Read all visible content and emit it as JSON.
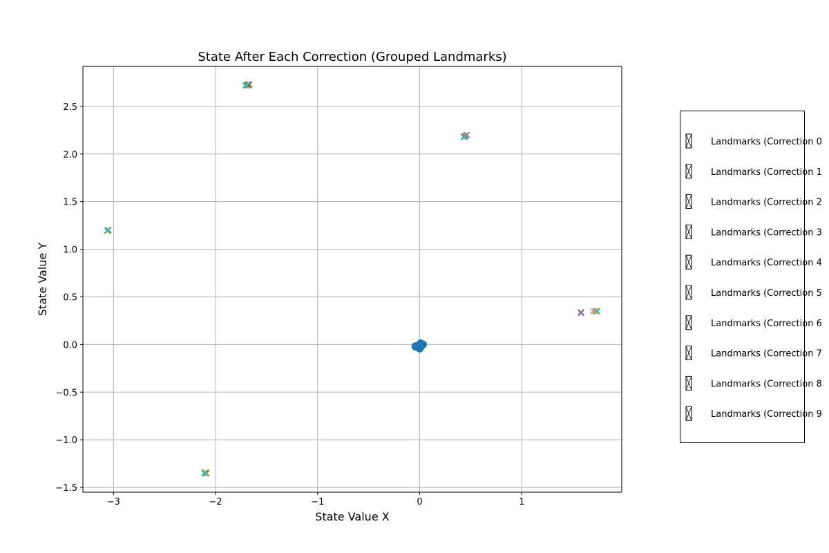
{
  "chart_data": {
    "type": "scatter",
    "title": "State After Each Correction (Grouped Landmarks)",
    "xlabel": "State Value X",
    "ylabel": "State Value Y",
    "xlim": [
      -3.3,
      1.98
    ],
    "ylim": [
      -1.55,
      2.92
    ],
    "xticks": [
      -3,
      -2,
      -1,
      0,
      1
    ],
    "xtick_labels": [
      "−3",
      "−2",
      "−1",
      "0",
      "1"
    ],
    "yticks": [
      -1.5,
      -1.0,
      -0.5,
      0.0,
      0.5,
      1.0,
      1.5,
      2.0,
      2.5
    ],
    "ytick_labels": [
      "−1.5",
      "−1.0",
      "−0.5",
      "0.0",
      "0.5",
      "1.0",
      "1.5",
      "2.0",
      "2.5"
    ],
    "grid": true,
    "legend_position": "right, outside plot (clipped)",
    "robot_state": {
      "color": "#1f77b4",
      "points": [
        [
          -0.04,
          -0.02
        ],
        [
          -0.02,
          -0.02
        ],
        [
          0.0,
          -0.03
        ],
        [
          0.01,
          -0.02
        ],
        [
          0.02,
          0.0
        ],
        [
          0.01,
          0.01
        ],
        [
          0.03,
          0.0
        ],
        [
          0.0,
          -0.04
        ]
      ]
    },
    "series": [
      {
        "label": "Landmarks (Correction 0",
        "color": "#1f77b4",
        "points": [
          [
            -3.06,
            1.2
          ],
          [
            -2.11,
            -1.35
          ],
          [
            -1.69,
            2.72
          ],
          [
            0.43,
            2.18
          ],
          [
            1.73,
            0.35
          ]
        ]
      },
      {
        "label": "Landmarks (Correction 1",
        "color": "#ff7f0e",
        "points": [
          [
            -3.05,
            1.2
          ],
          [
            -2.1,
            -1.35
          ],
          [
            -1.68,
            2.72
          ],
          [
            0.44,
            2.19
          ],
          [
            1.72,
            0.35
          ]
        ]
      },
      {
        "label": "Landmarks (Correction 2",
        "color": "#2ca02c",
        "points": [
          [
            -3.06,
            1.2
          ],
          [
            -2.1,
            -1.34
          ],
          [
            -1.69,
            2.73
          ],
          [
            0.44,
            2.18
          ],
          [
            1.74,
            0.35
          ]
        ]
      },
      {
        "label": "Landmarks (Correction 3",
        "color": "#d62728",
        "points": [
          [
            -3.05,
            1.2
          ],
          [
            -2.1,
            -1.35
          ],
          [
            -1.67,
            2.73
          ],
          [
            0.46,
            2.2
          ],
          [
            1.58,
            0.34
          ]
        ]
      },
      {
        "label": "Landmarks (Correction 4",
        "color": "#9467bd",
        "points": [
          [
            -3.05,
            1.2
          ],
          [
            -2.09,
            -1.35
          ],
          [
            -1.67,
            2.73
          ],
          [
            0.46,
            2.2
          ],
          [
            1.58,
            0.33
          ]
        ]
      },
      {
        "label": "Landmarks (Correction 5",
        "color": "#8c564b",
        "points": [
          [
            -3.05,
            1.2
          ],
          [
            -2.09,
            -1.35
          ],
          [
            -1.67,
            2.73
          ],
          [
            0.46,
            2.2
          ],
          [
            1.58,
            0.34
          ]
        ]
      },
      {
        "label": "Landmarks (Correction 6",
        "color": "#e377c2",
        "points": [
          [
            -3.06,
            1.2
          ],
          [
            -2.1,
            -1.35
          ],
          [
            -1.7,
            2.72
          ],
          [
            0.44,
            2.19
          ],
          [
            1.7,
            0.35
          ]
        ]
      },
      {
        "label": "Landmarks (Correction 7",
        "color": "#7f7f7f",
        "points": [
          [
            -3.05,
            1.2
          ],
          [
            -2.1,
            -1.35
          ],
          [
            -1.68,
            2.73
          ],
          [
            0.45,
            2.19
          ],
          [
            1.58,
            0.34
          ]
        ]
      },
      {
        "label": "Landmarks (Correction 8",
        "color": "#bcbd22",
        "points": [
          [
            -3.06,
            1.19
          ],
          [
            -2.1,
            -1.34
          ],
          [
            -1.7,
            2.72
          ],
          [
            0.43,
            2.18
          ],
          [
            1.73,
            0.35
          ]
        ]
      },
      {
        "label": "Landmarks (Correction 9",
        "color": "#17becf",
        "points": [
          [
            -3.06,
            1.2
          ],
          [
            -2.11,
            -1.35
          ],
          [
            -1.71,
            2.72
          ],
          [
            0.43,
            2.18
          ],
          [
            1.74,
            0.35
          ]
        ]
      }
    ]
  }
}
